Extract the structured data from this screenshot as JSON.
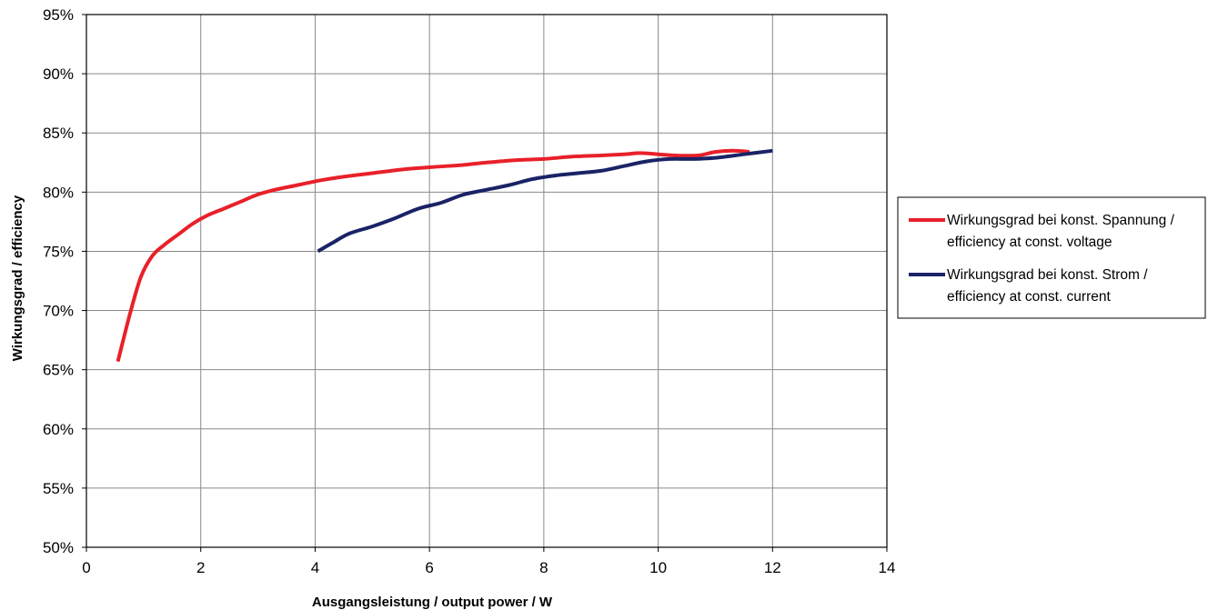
{
  "chart_data": {
    "type": "line",
    "title": "",
    "xlabel": "Ausgangsleistung / output power / W",
    "ylabel": "Wirkungsgrad / efficiency",
    "xlim": [
      0,
      14
    ],
    "ylim": [
      50,
      95
    ],
    "x_ticks": [
      0,
      2,
      4,
      6,
      8,
      10,
      12,
      14
    ],
    "y_ticks": [
      50,
      55,
      60,
      65,
      70,
      75,
      80,
      85,
      90,
      95
    ],
    "y_tick_labels": [
      "50%",
      "55%",
      "60%",
      "65%",
      "70%",
      "75%",
      "80%",
      "85%",
      "90%",
      "95%"
    ],
    "x_tick_labels": [
      "0",
      "2",
      "4",
      "6",
      "8",
      "10",
      "12",
      "14"
    ],
    "grid": true,
    "legend_position": "right",
    "series": [
      {
        "name": "Wirkungsgrad bei konst. Spannung / efficiency at const. voltage",
        "legend_lines": [
          "Wirkungsgrad bei konst. Spannung /",
          "efficiency at const. voltage"
        ],
        "color": "#e8202a",
        "points": [
          [
            0.55,
            65.7
          ],
          [
            0.75,
            69.5
          ],
          [
            0.95,
            72.8
          ],
          [
            1.15,
            74.6
          ],
          [
            1.35,
            75.5
          ],
          [
            1.6,
            76.4
          ],
          [
            1.85,
            77.3
          ],
          [
            2.1,
            78.0
          ],
          [
            2.4,
            78.6
          ],
          [
            2.7,
            79.2
          ],
          [
            3.0,
            79.8
          ],
          [
            3.3,
            80.2
          ],
          [
            3.7,
            80.6
          ],
          [
            4.1,
            81.0
          ],
          [
            4.5,
            81.3
          ],
          [
            5.0,
            81.6
          ],
          [
            5.5,
            81.9
          ],
          [
            6.0,
            82.1
          ],
          [
            6.6,
            82.3
          ],
          [
            7.0,
            82.5
          ],
          [
            7.5,
            82.7
          ],
          [
            8.0,
            82.8
          ],
          [
            8.5,
            83.0
          ],
          [
            9.0,
            83.1
          ],
          [
            9.4,
            83.2
          ],
          [
            9.7,
            83.3
          ],
          [
            10.0,
            83.2
          ],
          [
            10.3,
            83.1
          ],
          [
            10.7,
            83.1
          ],
          [
            11.0,
            83.4
          ],
          [
            11.3,
            83.5
          ],
          [
            11.6,
            83.4
          ]
        ]
      },
      {
        "name": "Wirkungsgrad bei konst. Strom / efficiency at const. current",
        "legend_lines": [
          "Wirkungsgrad bei konst. Strom /",
          "efficiency at const. current"
        ],
        "color": "#1a2366",
        "points": [
          [
            4.05,
            75.0
          ],
          [
            4.3,
            75.7
          ],
          [
            4.6,
            76.5
          ],
          [
            5.0,
            77.1
          ],
          [
            5.4,
            77.8
          ],
          [
            5.8,
            78.6
          ],
          [
            6.2,
            79.1
          ],
          [
            6.6,
            79.8
          ],
          [
            7.0,
            80.2
          ],
          [
            7.4,
            80.6
          ],
          [
            7.8,
            81.1
          ],
          [
            8.2,
            81.4
          ],
          [
            8.6,
            81.6
          ],
          [
            9.0,
            81.8
          ],
          [
            9.4,
            82.2
          ],
          [
            9.8,
            82.6
          ],
          [
            10.2,
            82.8
          ],
          [
            10.6,
            82.8
          ],
          [
            11.0,
            82.9
          ],
          [
            11.5,
            83.2
          ],
          [
            12.0,
            83.5
          ]
        ]
      }
    ]
  }
}
